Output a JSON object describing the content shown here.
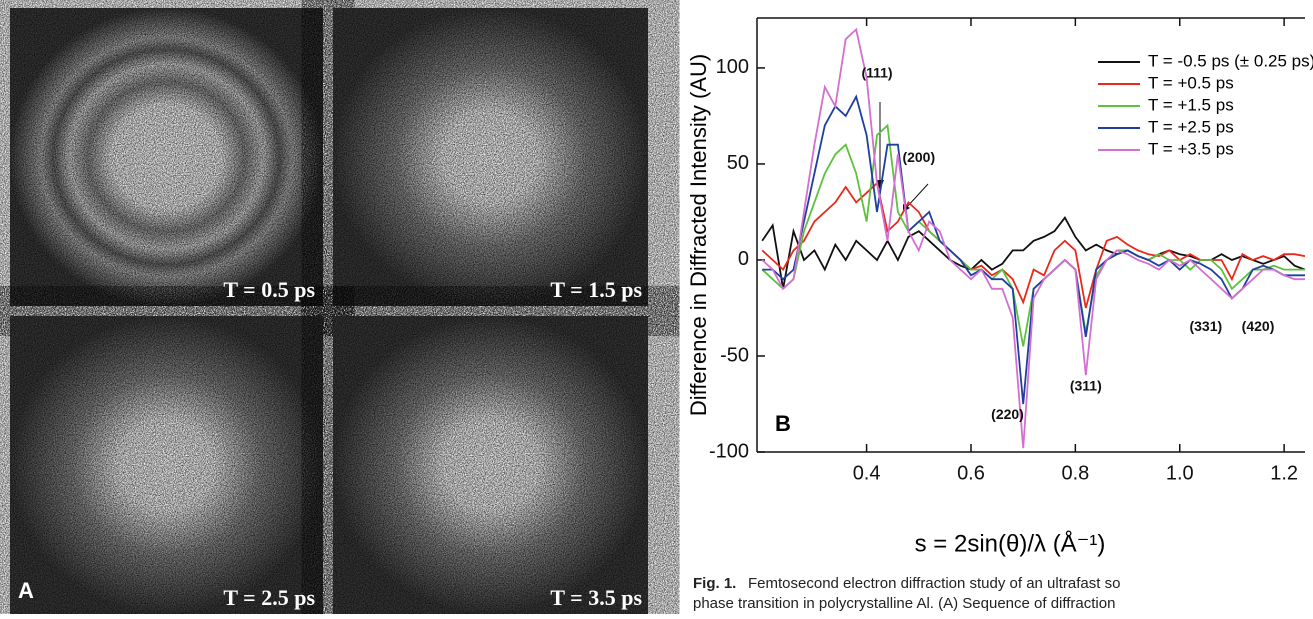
{
  "panels": [
    {
      "label": "T = 0.5 ps"
    },
    {
      "label": "T = 1.5 ps"
    },
    {
      "label": "T = 2.5 ps"
    },
    {
      "label": "T = 3.5 ps"
    }
  ],
  "panel_letter": "A",
  "chart_data": {
    "type": "line",
    "panel_letter": "B",
    "ylabel": "Difference in Diffracted Intensity (AU)",
    "xlabel": "s = 2sin(θ)/λ  (Å⁻¹)",
    "x": [
      0.2,
      0.22,
      0.24,
      0.26,
      0.28,
      0.3,
      0.32,
      0.34,
      0.36,
      0.38,
      0.4,
      0.42,
      0.44,
      0.46,
      0.48,
      0.5,
      0.52,
      0.54,
      0.56,
      0.58,
      0.6,
      0.62,
      0.64,
      0.66,
      0.68,
      0.7,
      0.72,
      0.74,
      0.76,
      0.78,
      0.8,
      0.82,
      0.84,
      0.86,
      0.88,
      0.9,
      0.92,
      0.94,
      0.96,
      0.98,
      1.0,
      1.02,
      1.04,
      1.06,
      1.08,
      1.1,
      1.12,
      1.14,
      1.16,
      1.18,
      1.2,
      1.22,
      1.24
    ],
    "series": [
      {
        "name": "T = -0.5 ps (± 0.25 ps)",
        "color": "#111111",
        "values": [
          10,
          18,
          -15,
          15,
          0,
          5,
          -5,
          8,
          0,
          10,
          5,
          0,
          10,
          0,
          12,
          15,
          10,
          5,
          0,
          -3,
          -5,
          0,
          -5,
          -2,
          5,
          5,
          10,
          12,
          15,
          22,
          12,
          5,
          8,
          5,
          3,
          5,
          2,
          0,
          3,
          5,
          3,
          2,
          0,
          0,
          3,
          0,
          2,
          0,
          -2,
          0,
          2,
          -3,
          -5
        ]
      },
      {
        "name": "T = +0.5 ps",
        "color": "#e8291c",
        "values": [
          5,
          0,
          -5,
          5,
          10,
          20,
          25,
          30,
          38,
          30,
          35,
          40,
          15,
          20,
          30,
          25,
          15,
          10,
          5,
          0,
          -5,
          -3,
          -8,
          -5,
          -10,
          -22,
          -5,
          -8,
          5,
          10,
          5,
          -25,
          -5,
          10,
          12,
          8,
          5,
          3,
          2,
          5,
          0,
          3,
          0,
          0,
          0,
          -10,
          3,
          0,
          2,
          0,
          3,
          3,
          2
        ]
      },
      {
        "name": "T = +1.5 ps",
        "color": "#5cc13b",
        "values": [
          -5,
          -10,
          -15,
          -10,
          15,
          30,
          45,
          55,
          60,
          45,
          20,
          65,
          70,
          25,
          15,
          20,
          15,
          10,
          5,
          0,
          -5,
          -5,
          -10,
          -5,
          -15,
          -45,
          -15,
          -10,
          -5,
          0,
          -5,
          -38,
          -8,
          0,
          5,
          5,
          2,
          0,
          3,
          0,
          0,
          -5,
          0,
          0,
          -5,
          -15,
          -10,
          -5,
          -5,
          -3,
          -5,
          -5,
          -5
        ]
      },
      {
        "name": "T = +2.5 ps",
        "color": "#1f3fa0",
        "values": [
          -5,
          -5,
          -10,
          -5,
          20,
          45,
          70,
          80,
          75,
          85,
          65,
          25,
          60,
          60,
          15,
          20,
          25,
          10,
          5,
          0,
          -8,
          -5,
          -10,
          -10,
          -15,
          -75,
          -15,
          -10,
          -5,
          0,
          -5,
          -40,
          -5,
          0,
          3,
          5,
          2,
          0,
          -3,
          0,
          -5,
          0,
          -2,
          -5,
          -10,
          -20,
          -15,
          -5,
          -3,
          -5,
          -8,
          -8,
          -8
        ]
      },
      {
        "name": "T = +3.5 ps",
        "color": "#d36fd1",
        "values": [
          0,
          -5,
          -15,
          -10,
          25,
          60,
          90,
          80,
          115,
          120,
          95,
          40,
          10,
          55,
          15,
          5,
          20,
          15,
          0,
          -5,
          -10,
          -5,
          -15,
          -15,
          -30,
          -98,
          -20,
          -10,
          -5,
          0,
          -5,
          -60,
          -10,
          0,
          5,
          3,
          0,
          -2,
          -5,
          0,
          -3,
          0,
          -5,
          -10,
          -15,
          -20,
          -15,
          -10,
          -5,
          -5,
          -8,
          -10,
          -10
        ]
      }
    ],
    "xlim": [
      0.19,
      1.24
    ],
    "ylim": [
      -100,
      126
    ],
    "xticks": [
      0.4,
      0.6,
      0.8,
      {
        "value": 1,
        "label": "1.0"
      },
      1.2
    ],
    "yticks": [
      -100,
      -50,
      0,
      50,
      100
    ],
    "legend": "upper right",
    "annotations": [
      {
        "text": "(111)",
        "x": 0.42,
        "y": 97
      },
      {
        "text": "(200)",
        "x": 0.5,
        "y": 53
      },
      {
        "text": "(220)",
        "x": 0.67,
        "y": -81
      },
      {
        "text": "(311)",
        "x": 0.82,
        "y": -66
      },
      {
        "text": "(331)",
        "x": 1.05,
        "y": -35
      },
      {
        "text": "(420)",
        "x": 1.15,
        "y": -35
      }
    ]
  },
  "caption": {
    "label": "Fig. 1.",
    "lines": [
      "Femtosecond electron diffraction study of an ultrafast so",
      "phase transition in polycrystalline Al. (A) Sequence of diffraction"
    ]
  }
}
